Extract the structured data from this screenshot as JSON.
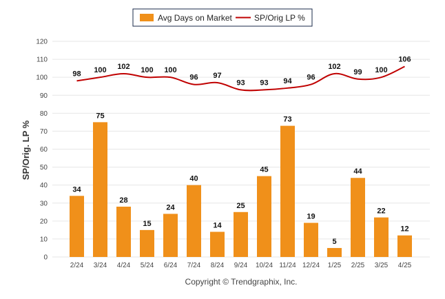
{
  "chart_data": {
    "type": "bar",
    "categories": [
      "2/24",
      "3/24",
      "4/24",
      "5/24",
      "6/24",
      "7/24",
      "8/24",
      "9/24",
      "10/24",
      "11/24",
      "12/24",
      "1/25",
      "2/25",
      "3/25",
      "4/25"
    ],
    "series": [
      {
        "name": "Avg Days on Market",
        "type": "bar",
        "color": "#f0901a",
        "values": [
          34,
          75,
          28,
          15,
          24,
          40,
          14,
          25,
          45,
          73,
          19,
          5,
          44,
          22,
          12
        ]
      },
      {
        "name": "SP/Orig LP %",
        "type": "line",
        "color": "#c00000",
        "values": [
          98,
          100,
          102,
          100,
          100,
          96,
          97,
          93,
          93,
          94,
          96,
          102,
          99,
          100,
          106
        ]
      }
    ],
    "ylabel": "SP/Orig. LP %",
    "xlabel": "",
    "ylim": [
      0,
      120
    ],
    "yticks": [
      0,
      10,
      20,
      30,
      40,
      50,
      60,
      70,
      80,
      90,
      100,
      110,
      120
    ],
    "grid": true,
    "legend_position": "top-center"
  },
  "footer": {
    "copyright": "Copyright © Trendgraphix, Inc."
  }
}
